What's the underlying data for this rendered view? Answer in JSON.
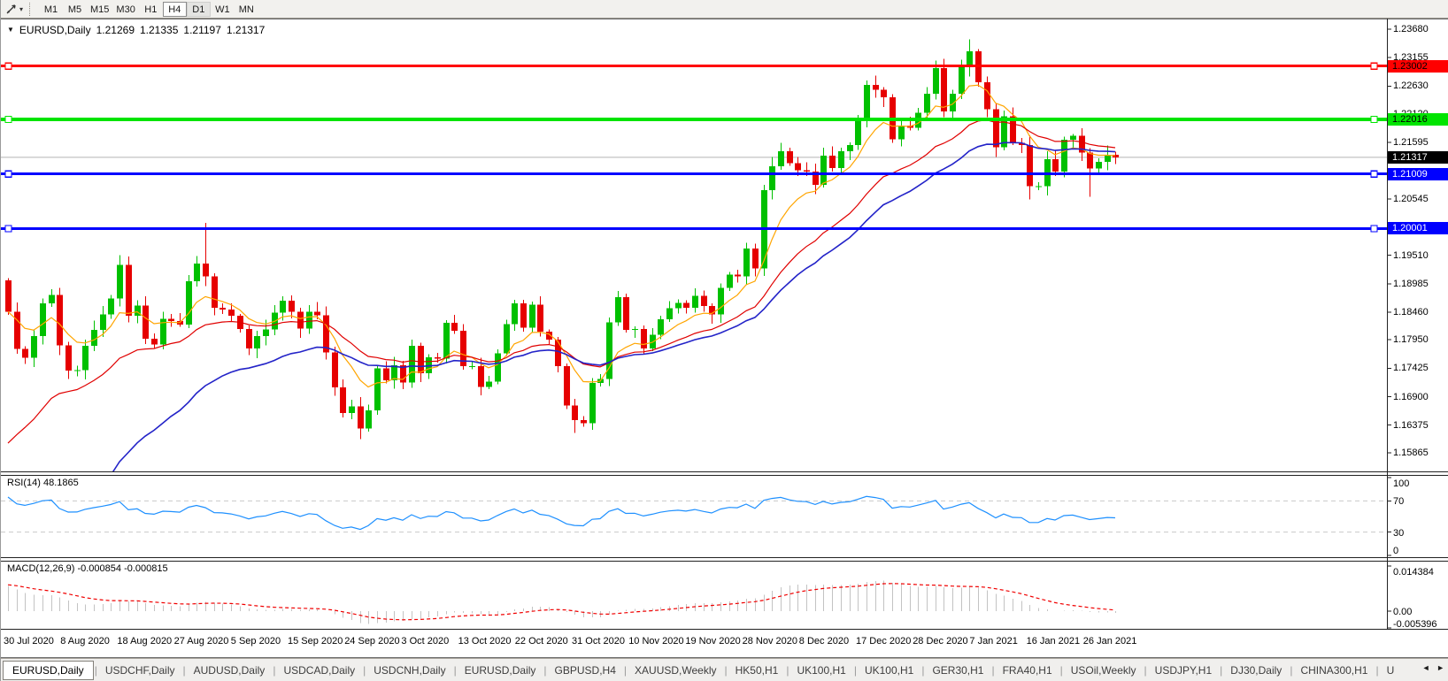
{
  "toolbar": {
    "timeframes": [
      "M1",
      "M5",
      "M15",
      "M30",
      "H1",
      "H4",
      "D1",
      "W1",
      "MN"
    ],
    "active_timeframe": "H4",
    "highlighted_timeframe": "D1",
    "tool_icon": "arrow-tool-icon",
    "dropdown_glyph": "▾"
  },
  "header": {
    "symbol": "EURUSD,Daily",
    "open": "1.21269",
    "high": "1.21335",
    "low": "1.21197",
    "close": "1.21317"
  },
  "price_axis": {
    "ticks": [
      "1.23680",
      "1.23155",
      "1.22630",
      "1.22120",
      "1.21595",
      "1.20545",
      "1.19510",
      "1.18985",
      "1.18460",
      "1.17950",
      "1.17425",
      "1.16900",
      "1.16375",
      "1.15865"
    ]
  },
  "hlines": [
    {
      "value": 1.23002,
      "label": "1.23002",
      "color": "#FF0000",
      "width": 3,
      "text_color": "#000000"
    },
    {
      "value": 1.22016,
      "label": "1.22016",
      "color": "#00E400",
      "width": 4,
      "text_color": "#000000"
    },
    {
      "value": 1.21009,
      "label": "1.21009",
      "color": "#0000FF",
      "width": 3,
      "text_color": "#FFFFFF"
    },
    {
      "value": 1.20001,
      "label": "1.20001",
      "color": "#0000FF",
      "width": 3,
      "text_color": "#FFFFFF"
    }
  ],
  "current_price": {
    "value": 1.21317,
    "label": "1.21317",
    "line_color": "#B4B4B4",
    "badge_bg": "#000000",
    "badge_text": "#FFFFFF"
  },
  "date_axis": [
    "30 Jul 2020",
    "8 Aug 2020",
    "18 Aug 2020",
    "27 Aug 2020",
    "5 Sep 2020",
    "15 Sep 2020",
    "24 Sep 2020",
    "3 Oct 2020",
    "13 Oct 2020",
    "22 Oct 2020",
    "31 Oct 2020",
    "10 Nov 2020",
    "19 Nov 2020",
    "28 Nov 2020",
    "8 Dec 2020",
    "17 Dec 2020",
    "28 Dec 2020",
    "7 Jan 2021",
    "16 Jan 2021",
    "26 Jan 2021"
  ],
  "rsi_pane": {
    "label": "RSI(14) 48.1865",
    "ticks": [
      "100",
      "70",
      "30",
      "0"
    ],
    "tick_values": [
      100,
      70,
      30,
      0
    ],
    "level_lines": [
      70,
      30
    ],
    "line_color": "#1E90FF",
    "level_color": "#C9C9C9"
  },
  "macd_pane": {
    "label": "MACD(12,26,9) -0.000854 -0.000815",
    "ticks": [
      "0.014384",
      "0.00",
      "-0.005396"
    ],
    "tick_values": [
      0.014384,
      0,
      -0.005396
    ],
    "max": 0.014384,
    "min": -0.005396,
    "hist_color": "#C3C3C3",
    "signal_color": "#F00000"
  },
  "tabs": {
    "items": [
      {
        "label": "EURUSD,Daily",
        "active": true
      },
      {
        "label": "USDCHF,Daily",
        "active": false
      },
      {
        "label": "AUDUSD,Daily",
        "active": false
      },
      {
        "label": "USDCAD,Daily",
        "active": false
      },
      {
        "label": "USDCNH,Daily",
        "active": false
      },
      {
        "label": "EURUSD,Daily",
        "active": false
      },
      {
        "label": "GBPUSD,H4",
        "active": false
      },
      {
        "label": "XAUUSD,Weekly",
        "active": false
      },
      {
        "label": "HK50,H1",
        "active": false
      },
      {
        "label": "UK100,H1",
        "active": false
      },
      {
        "label": "UK100,H1",
        "active": false
      },
      {
        "label": "GER30,H1",
        "active": false
      },
      {
        "label": "FRA40,H1",
        "active": false
      },
      {
        "label": "USOil,Weekly",
        "active": false
      },
      {
        "label": "USDJPY,H1",
        "active": false
      },
      {
        "label": "DJ30,Daily",
        "active": false
      },
      {
        "label": "CHINA300,H1",
        "active": false
      },
      {
        "label": "U",
        "active": false
      }
    ],
    "scroll_left_glyph": "◄",
    "scroll_right_glyph": "►"
  },
  "chart_data": {
    "type": "candlestick",
    "symbol": "EURUSD",
    "timeframe": "Daily",
    "title": "EURUSD,Daily",
    "ohlc_current": {
      "open": 1.21269,
      "high": 1.21335,
      "low": 1.21197,
      "close": 1.21317
    },
    "y_axis_range": [
      1.15865,
      1.2368
    ],
    "x_range": [
      "30 Jul 2020",
      "26 Jan 2021"
    ],
    "first_open": 1.1905,
    "closes": [
      1.1847,
      1.1778,
      1.1762,
      1.1802,
      1.1862,
      1.1878,
      1.1785,
      1.1738,
      1.1739,
      1.1784,
      1.1813,
      1.1842,
      1.1871,
      1.1933,
      1.1839,
      1.1858,
      1.1797,
      1.1786,
      1.1834,
      1.183,
      1.1823,
      1.1903,
      1.1936,
      1.1912,
      1.1854,
      1.1851,
      1.1839,
      1.1815,
      1.1779,
      1.1802,
      1.1814,
      1.1845,
      1.1867,
      1.1847,
      1.1816,
      1.1847,
      1.184,
      1.1772,
      1.1707,
      1.166,
      1.1672,
      1.1631,
      1.1665,
      1.1742,
      1.172,
      1.1748,
      1.1716,
      1.1784,
      1.1733,
      1.1763,
      1.176,
      1.1826,
      1.1812,
      1.1746,
      1.1746,
      1.1708,
      1.1718,
      1.177,
      1.1824,
      1.1862,
      1.1817,
      1.186,
      1.181,
      1.1795,
      1.1746,
      1.1674,
      1.1647,
      1.1641,
      1.1715,
      1.1723,
      1.1827,
      1.1874,
      1.1813,
      1.1815,
      1.1779,
      1.1804,
      1.1833,
      1.1853,
      1.1863,
      1.1854,
      1.1876,
      1.1857,
      1.1842,
      1.1891,
      1.1915,
      1.1912,
      1.1963,
      1.1927,
      1.2071,
      1.2115,
      1.2143,
      1.2121,
      1.2108,
      1.2105,
      1.2081,
      1.2135,
      1.2112,
      1.2143,
      1.2154,
      1.2199,
      1.2265,
      1.2256,
      1.2242,
      1.2165,
      1.219,
      1.2186,
      1.2214,
      1.2249,
      1.2296,
      1.2216,
      1.2249,
      1.2299,
      1.2327,
      1.227,
      1.222,
      1.215,
      1.2207,
      1.2158,
      1.2154,
      1.2078,
      1.2078,
      1.2128,
      1.2105,
      1.2164,
      1.2171,
      1.214,
      1.2111,
      1.2123,
      1.2136,
      1.21317
    ],
    "special_highs": {
      "23": 1.2011,
      "100": 1.2273,
      "108": 1.231,
      "112": 1.2349,
      "129": 1.2142
    },
    "special_lows": {
      "41": 1.1612,
      "66": 1.1623,
      "119": 1.2054,
      "126": 1.2059,
      "129": 1.2119
    },
    "up_color": "#00C000",
    "down_color": "#E60000",
    "ma_lines": [
      {
        "name": "fast",
        "color": "#FFA500",
        "period": 8
      },
      {
        "name": "medium",
        "color": "#E00000",
        "period": 21
      },
      {
        "name": "slow",
        "color": "#2323C8",
        "period": 30
      }
    ],
    "indicators": [
      {
        "name": "RSI",
        "period": 14,
        "current": 48.1865
      },
      {
        "name": "MACD",
        "params": [
          12,
          26,
          9
        ],
        "current": [
          -0.000854,
          -0.000815
        ]
      }
    ],
    "horizontal_levels": [
      1.23002,
      1.22016,
      1.21009,
      1.20001
    ]
  }
}
